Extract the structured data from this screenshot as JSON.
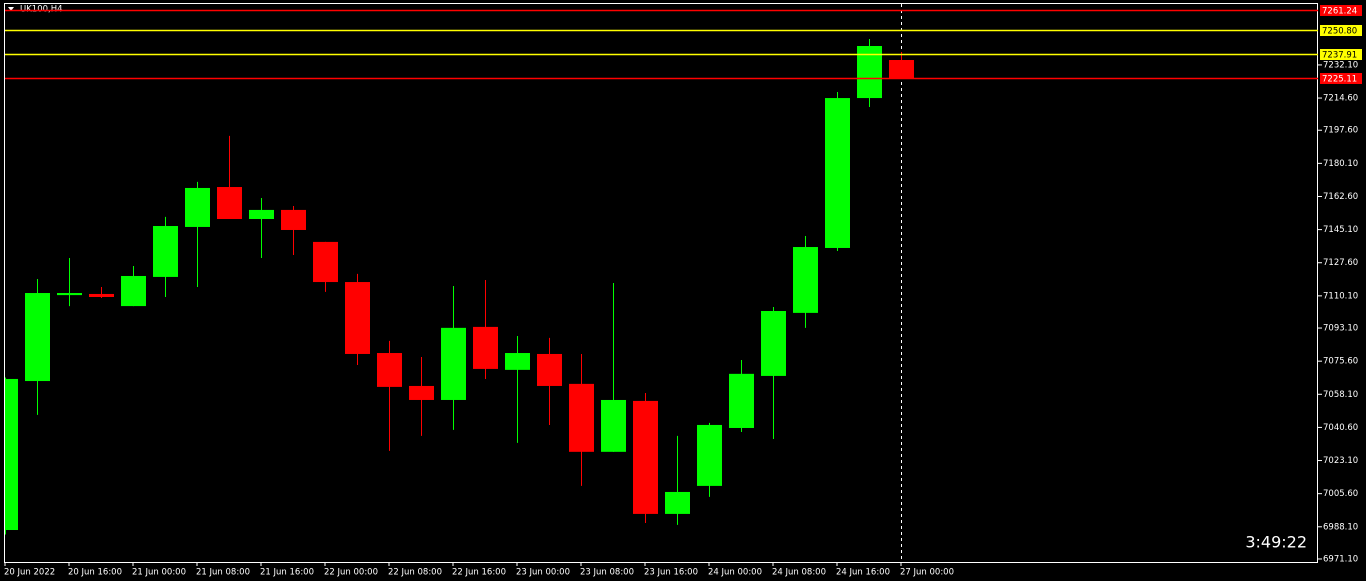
{
  "chart_data": {
    "type": "candlestick",
    "title": "UK100,H4",
    "timer": "3:49:22",
    "categories": [
      "20 Jun 2022",
      null,
      "20 Jun 16:00",
      null,
      "21 Jun 00:00",
      null,
      "21 Jun 08:00",
      null,
      "21 Jun 16:00",
      null,
      "22 Jun 00:00",
      null,
      "22 Jun 08:00",
      null,
      "22 Jun 16:00",
      null,
      "23 Jun 00:00",
      null,
      "23 Jun 08:00",
      null,
      "23 Jun 16:00",
      null,
      "24 Jun 00:00",
      null,
      "24 Jun 08:00",
      null,
      "24 Jun 16:00",
      null,
      "27 Jun 00:00"
    ],
    "open": [
      6986.4,
      7065.1,
      7110.5,
      7111.1,
      7104.7,
      7120.1,
      7146.5,
      7167.6,
      7150.7,
      7155.5,
      7138.6,
      7117.4,
      7079.9,
      7062.5,
      7055.1,
      7093.7,
      7071.0,
      7079.4,
      7063.6,
      7027.7,
      7054.6,
      6994.9,
      7009.7,
      7040.3,
      7067.8,
      7101.1,
      7135.4,
      7214.6,
      7234.7
    ],
    "high": [
      7067.0,
      7119.0,
      7130.1,
      7114.8,
      7125.9,
      7151.8,
      7170.3,
      7194.6,
      7161.8,
      7157.6,
      7138.6,
      7121.7,
      7086.3,
      7077.8,
      7115.3,
      7118.5,
      7088.9,
      7087.9,
      7079.4,
      7116.9,
      7058.8,
      7036.1,
      7043.0,
      7076.2,
      7104.2,
      7141.7,
      7217.8,
      7245.8,
      7238.9
    ],
    "low": [
      6984.0,
      7047.2,
      7104.7,
      7109.0,
      7104.7,
      7109.5,
      7114.8,
      7150.7,
      7130.1,
      7131.7,
      7112.2,
      7073.6,
      7028.2,
      7036.1,
      7039.3,
      7066.2,
      7032.4,
      7041.9,
      7009.7,
      7027.7,
      6990.1,
      6989.1,
      7003.9,
      7038.2,
      7034.5,
      7093.2,
      7133.8,
      7209.9,
      7225.11
    ],
    "close": [
      7066.2,
      7111.6,
      7111.6,
      7109.5,
      7120.6,
      7147.0,
      7167.1,
      7150.7,
      7155.5,
      7144.9,
      7117.4,
      7079.4,
      7062.0,
      7055.1,
      7093.2,
      7071.5,
      7079.9,
      7062.5,
      7027.7,
      7055.1,
      6994.9,
      7006.5,
      7041.9,
      7068.9,
      7102.1,
      7135.9,
      7214.6,
      7242.1,
      7225.11
    ],
    "up_color": "#00ff00",
    "down_color": "#ff0000",
    "ylim": [
      6969.5,
      7266.4
    ],
    "yticks": [
      {
        "value": 6971.1,
        "label": "6971.10"
      },
      {
        "value": 6988.1,
        "label": "6988.10"
      },
      {
        "value": 7005.6,
        "label": "7005.60"
      },
      {
        "value": 7023.1,
        "label": "7023.10"
      },
      {
        "value": 7040.6,
        "label": "7040.60"
      },
      {
        "value": 7058.1,
        "label": "7058.10"
      },
      {
        "value": 7075.6,
        "label": "7075.60"
      },
      {
        "value": 7093.1,
        "label": "7093.10"
      },
      {
        "value": 7110.1,
        "label": "7110.10"
      },
      {
        "value": 7127.6,
        "label": "7127.60"
      },
      {
        "value": 7145.1,
        "label": "7145.10"
      },
      {
        "value": 7162.6,
        "label": "7162.60"
      },
      {
        "value": 7180.1,
        "label": "7180.10"
      },
      {
        "value": 7197.6,
        "label": "7197.60"
      },
      {
        "value": 7214.6,
        "label": "7214.60"
      },
      {
        "value": 7232.1,
        "label": "7232.10"
      }
    ],
    "levels": [
      {
        "value": 7261.24,
        "label": "7261.24",
        "color": "#ff0000"
      },
      {
        "value": 7250.8,
        "label": "7250.80",
        "color": "#ffff00"
      },
      {
        "value": 7237.91,
        "label": "7237.91",
        "color": "#ffff00"
      },
      {
        "value": 7225.11,
        "label": "7225.11",
        "color": "#ff0000"
      }
    ]
  }
}
